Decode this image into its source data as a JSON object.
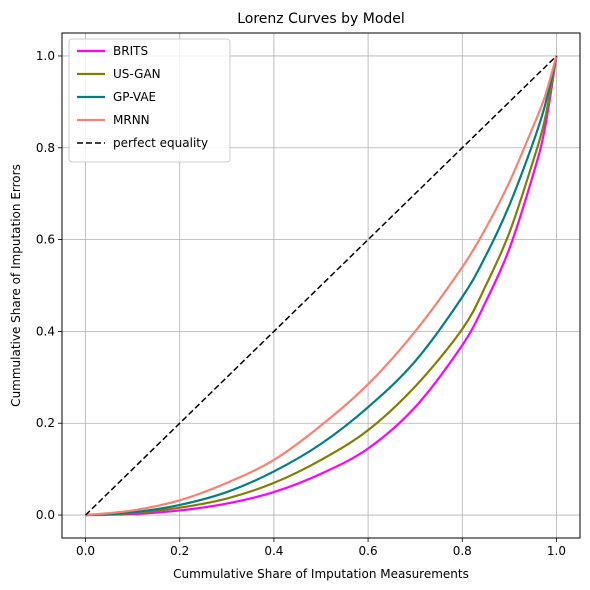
{
  "chart_data": {
    "type": "line",
    "title": "Lorenz Curves by Model",
    "xlabel": "Cummulative Share of Imputation Measurements",
    "ylabel": "Cummulative Share of Imputation Errors",
    "xlim": [
      -0.05,
      1.05
    ],
    "ylim": [
      -0.05,
      1.05
    ],
    "xticks": [
      0.0,
      0.2,
      0.4,
      0.6,
      0.8,
      1.0
    ],
    "yticks": [
      0.0,
      0.2,
      0.4,
      0.6,
      0.8,
      1.0
    ],
    "xtick_labels": [
      "0.0",
      "0.2",
      "0.4",
      "0.6",
      "0.8",
      "1.0"
    ],
    "ytick_labels": [
      "0.0",
      "0.2",
      "0.4",
      "0.6",
      "0.8",
      "1.0"
    ],
    "grid": true,
    "legend_position": "top-left",
    "x": [
      0.0,
      0.1,
      0.2,
      0.3,
      0.4,
      0.5,
      0.6,
      0.7,
      0.8,
      0.85,
      0.9,
      0.95,
      0.975,
      1.0
    ],
    "series": [
      {
        "name": "BRITS",
        "color": "#ff00ff",
        "style": "solid",
        "values": [
          0.0,
          0.002,
          0.01,
          0.025,
          0.05,
          0.09,
          0.145,
          0.235,
          0.37,
          0.465,
          0.58,
          0.74,
          0.84,
          1.0
        ]
      },
      {
        "name": "US-GAN",
        "color": "#808000",
        "style": "solid",
        "values": [
          0.0,
          0.004,
          0.016,
          0.036,
          0.07,
          0.12,
          0.185,
          0.28,
          0.405,
          0.5,
          0.615,
          0.77,
          0.86,
          1.0
        ]
      },
      {
        "name": "GP-VAE",
        "color": "#008080",
        "style": "solid",
        "values": [
          0.0,
          0.006,
          0.022,
          0.05,
          0.095,
          0.155,
          0.235,
          0.335,
          0.475,
          0.565,
          0.675,
          0.81,
          0.89,
          1.0
        ]
      },
      {
        "name": "MRNN",
        "color": "#fa8072",
        "style": "solid",
        "values": [
          0.0,
          0.01,
          0.032,
          0.07,
          0.12,
          0.195,
          0.285,
          0.4,
          0.54,
          0.625,
          0.725,
          0.845,
          0.91,
          1.0
        ]
      },
      {
        "name": "perfect equality",
        "color": "#000000",
        "style": "dashed",
        "values": [
          0.0,
          0.1,
          0.2,
          0.3,
          0.4,
          0.5,
          0.6,
          0.7,
          0.8,
          0.85,
          0.9,
          0.95,
          0.975,
          1.0
        ]
      }
    ]
  }
}
